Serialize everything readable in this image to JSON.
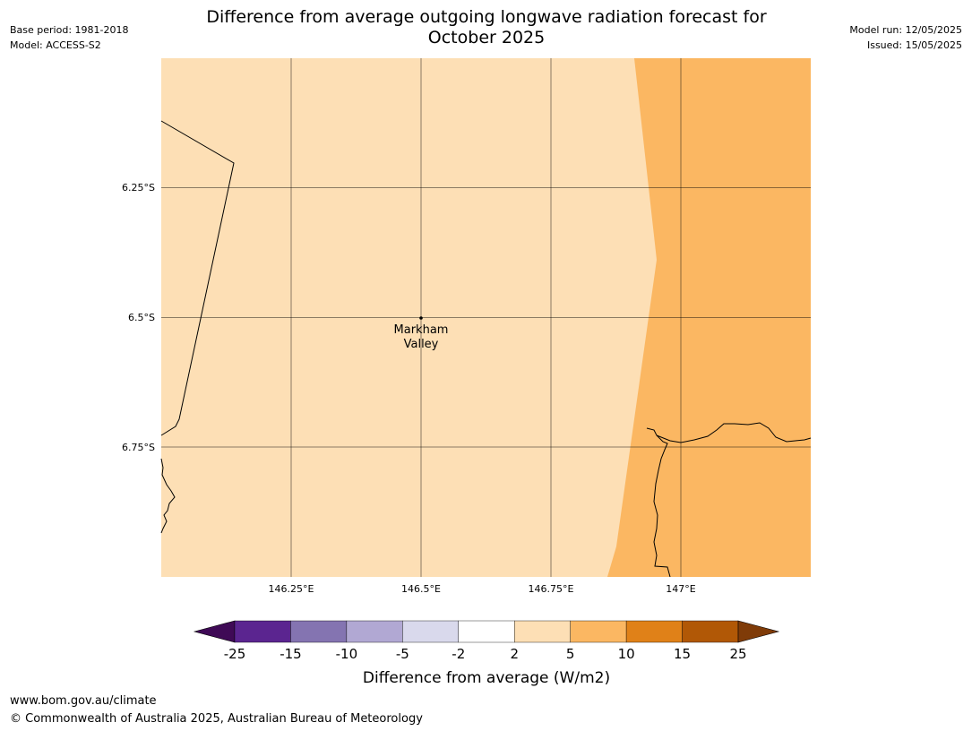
{
  "header": {
    "base_period": "Base period: 1981-2018",
    "model": "Model: ACCESS-S2",
    "title_line1": "Difference from average outgoing longwave radiation forecast for",
    "title_line2": "October 2025",
    "model_run": "Model run: 12/05/2025",
    "issued": "Issued: 15/05/2025"
  },
  "map": {
    "lat_labels": [
      "6.25°S",
      "6.5°S",
      "6.75°S"
    ],
    "lon_labels": [
      "146.25°E",
      "146.5°E",
      "146.75°E",
      "147°E"
    ],
    "place": {
      "name_line1": "Markham",
      "name_line2": "Valley",
      "lon": 146.5,
      "lat": -6.5
    },
    "extent": {
      "lon_min": 146.0,
      "lon_max": 147.25,
      "lat_min": -7.0,
      "lat_max": -6.0
    },
    "fill_colors": {
      "band_2_5": "#fddfb5",
      "band_5_10": "#fbb762"
    }
  },
  "colorbar": {
    "label": "Difference from average (W/m2)",
    "ticks": [
      "-25",
      "-15",
      "-10",
      "-5",
      "-2",
      "2",
      "5",
      "10",
      "15",
      "25"
    ],
    "colors": [
      "#3f0a56",
      "#5b2590",
      "#8474b1",
      "#b1a8d3",
      "#d9d9ec",
      "#ffffff",
      "#fddfb5",
      "#fbb762",
      "#e08118",
      "#b15806",
      "#7f3b08"
    ]
  },
  "footer": {
    "url": "www.bom.gov.au/climate",
    "copyright": "© Commonwealth of Australia 2025, Australian Bureau of Meteorology"
  }
}
